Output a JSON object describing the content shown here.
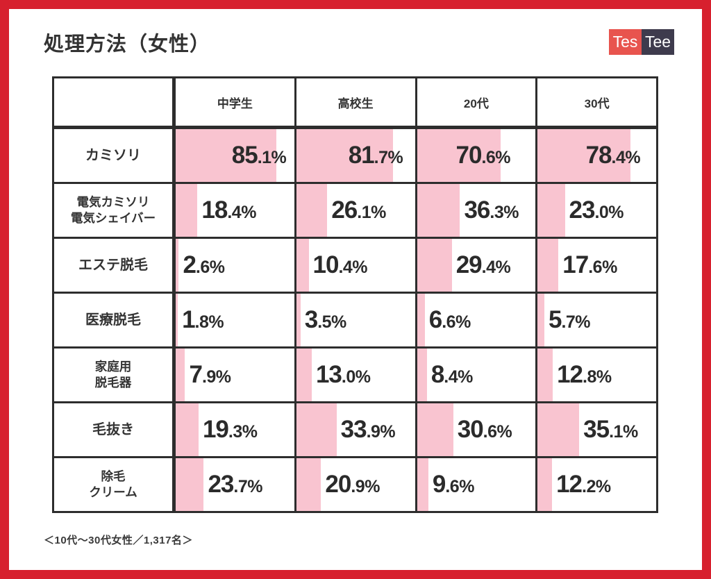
{
  "title": "処理方法（女性）",
  "logo": {
    "part1": "Tes",
    "part2": "Tee"
  },
  "footer": {
    "text": "＜10代～30代女性／1,317名＞"
  },
  "colors": {
    "frame_red": "#D7202E",
    "bar_pink": "#F9C4D0",
    "grid_dark": "#2D2D2D",
    "logo_red": "#E8544E",
    "logo_dark": "#3E3B4D",
    "text_dark": "#333333"
  },
  "chart_data": {
    "type": "bar",
    "title": "処理方法（女性）",
    "orientation": "horizontal",
    "unit": "%",
    "bar_scale_max": 100,
    "columns": [
      "中学生",
      "高校生",
      "20代",
      "30代"
    ],
    "rows": [
      {
        "label_lines": [
          "カミソリ"
        ],
        "values": [
          85.1,
          81.7,
          70.6,
          78.4
        ]
      },
      {
        "label_lines": [
          "電気カミソリ",
          "電気シェイバー"
        ],
        "values": [
          18.4,
          26.1,
          36.3,
          23.0
        ]
      },
      {
        "label_lines": [
          "エステ脱毛"
        ],
        "values": [
          2.6,
          10.4,
          29.4,
          17.6
        ]
      },
      {
        "label_lines": [
          "医療脱毛"
        ],
        "values": [
          1.8,
          3.5,
          6.6,
          5.7
        ]
      },
      {
        "label_lines": [
          "家庭用",
          "脱毛器"
        ],
        "values": [
          7.9,
          13.0,
          8.4,
          12.8
        ]
      },
      {
        "label_lines": [
          "毛抜き"
        ],
        "values": [
          19.3,
          33.9,
          30.6,
          35.1
        ]
      },
      {
        "label_lines": [
          "除毛",
          "クリーム"
        ],
        "values": [
          23.7,
          20.9,
          9.6,
          12.2
        ]
      }
    ],
    "note": "＜10代～30代女性／1,317名＞"
  }
}
